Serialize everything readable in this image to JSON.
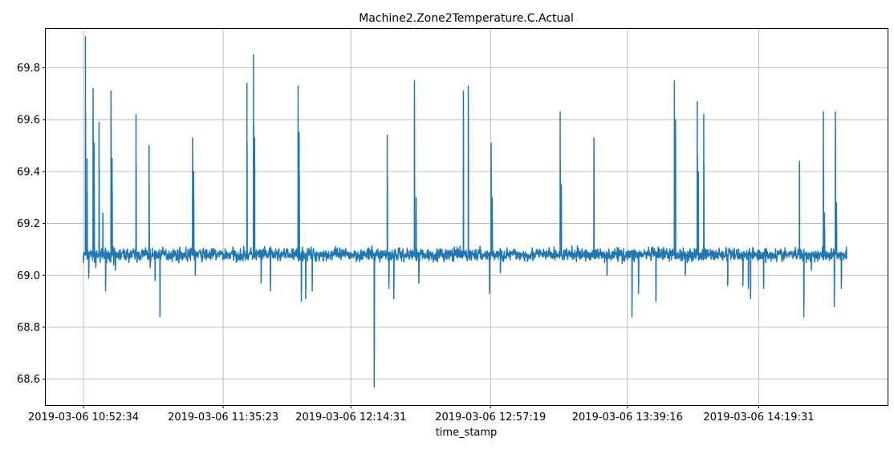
{
  "chart_data": {
    "type": "line",
    "title": "Machine2.Zone2Temperature.C.Actual",
    "xlabel": "time_stamp",
    "ylabel": "",
    "grid": true,
    "legend": "none",
    "color": "#1f77b4",
    "xlim": [
      "2019-03-06 10:41:00",
      "2019-03-06 14:59:00"
    ],
    "ylim": [
      68.5,
      69.95
    ],
    "x_ticks": [
      "2019-03-06 10:52:34",
      "2019-03-06 11:35:23",
      "2019-03-06 12:14:31",
      "2019-03-06 12:57:19",
      "2019-03-06 13:39:16",
      "2019-03-06 14:19:31"
    ],
    "y_ticks": [
      "68.6",
      "68.8",
      "69.0",
      "69.2",
      "69.4",
      "69.6",
      "69.8"
    ],
    "baseline": 69.08,
    "series": [
      {
        "baseline_noise": 0.025,
        "x": [
          "2019-03-06 10:52:34",
          "2019-03-06 10:53:10",
          "2019-03-06 10:53:40",
          "2019-03-06 10:54:10",
          "2019-03-06 10:55:30",
          "2019-03-06 10:55:50",
          "2019-03-06 10:56:20",
          "2019-03-06 10:57:20",
          "2019-03-06 10:57:40",
          "2019-03-06 10:58:30",
          "2019-03-06 10:59:20",
          "2019-03-06 11:01:00",
          "2019-03-06 11:01:20",
          "2019-03-06 11:01:50",
          "2019-03-06 11:02:20",
          "2019-03-06 11:08:40",
          "2019-03-06 11:09:00",
          "2019-03-06 11:12:40",
          "2019-03-06 11:13:00",
          "2019-03-06 11:14:30",
          "2019-03-06 11:16:00",
          "2019-03-06 11:26:00",
          "2019-03-06 11:26:20",
          "2019-03-06 11:26:50",
          "2019-03-06 11:42:40",
          "2019-03-06 11:43:00",
          "2019-03-06 11:44:40",
          "2019-03-06 11:45:00",
          "2019-03-06 11:45:30",
          "2019-03-06 11:47:00",
          "2019-03-06 11:49:50",
          "2019-03-06 11:51:00",
          "2019-03-06 11:58:20",
          "2019-03-06 11:58:40",
          "2019-03-06 11:59:20",
          "2019-03-06 12:00:40",
          "2019-03-06 12:02:40",
          "2019-03-06 12:21:40",
          "2019-03-06 12:21:55",
          "2019-03-06 12:19:00",
          "2019-03-06 12:25:40",
          "2019-03-06 12:26:10",
          "2019-03-06 12:27:40",
          "2019-03-06 12:34:00",
          "2019-03-06 12:34:30",
          "2019-03-06 12:34:45",
          "2019-03-06 12:35:20",
          "2019-03-06 12:35:40",
          "2019-03-06 12:49:00",
          "2019-03-06 12:50:30",
          "2019-03-06 12:50:50",
          "2019-03-06 12:57:00",
          "2019-03-06 12:57:30",
          "2019-03-06 12:57:50",
          "2019-03-06 13:00:20",
          "2019-03-06 13:18:40",
          "2019-03-06 13:19:00",
          "2019-03-06 13:29:00",
          "2019-03-06 13:33:00",
          "2019-03-06 13:40:40",
          "2019-03-06 13:42:40",
          "2019-03-06 13:48:00",
          "2019-03-06 13:53:40",
          "2019-03-06 13:54:00",
          "2019-03-06 13:54:20",
          "2019-03-06 13:57:00",
          "2019-03-06 14:00:40",
          "2019-03-06 14:01:00",
          "2019-03-06 14:02:40",
          "2019-03-06 14:10:00",
          "2019-03-06 14:14:40",
          "2019-03-06 14:16:20",
          "2019-03-06 14:17:00",
          "2019-03-06 14:21:00",
          "2019-03-06 14:32:00",
          "2019-03-06 14:33:20",
          "2019-03-06 14:35:40",
          "2019-03-06 14:39:20",
          "2019-03-06 14:39:40",
          "2019-03-06 14:42:40",
          "2019-03-06 14:43:00",
          "2019-03-06 14:43:20",
          "2019-03-06 14:44:50",
          "2019-03-06 14:45:30"
        ],
        "y": [
          69.05,
          69.92,
          69.45,
          68.99,
          69.72,
          69.51,
          69.03,
          69.59,
          69.05,
          69.24,
          68.94,
          69.71,
          69.45,
          69.04,
          69.02,
          69.62,
          69.05,
          69.5,
          69.03,
          68.98,
          68.84,
          69.53,
          69.4,
          69.0,
          69.74,
          69.06,
          69.85,
          69.53,
          69.06,
          68.97,
          68.94,
          69.08,
          69.73,
          69.55,
          68.9,
          68.91,
          68.94,
          68.57,
          69.08,
          69.08,
          69.54,
          68.95,
          68.91,
          69.75,
          69.3,
          69.1,
          68.97,
          69.08,
          69.71,
          69.73,
          69.06,
          68.93,
          69.51,
          69.3,
          69.01,
          69.63,
          69.35,
          69.53,
          69.0,
          68.84,
          68.93,
          68.9,
          69.75,
          69.6,
          69.08,
          69.0,
          69.67,
          69.4,
          69.62,
          68.96,
          68.96,
          68.95,
          68.91,
          68.95,
          69.44,
          68.84,
          69.02,
          69.63,
          69.24,
          68.88,
          69.63,
          69.28,
          68.95,
          69.06
        ]
      }
    ]
  }
}
